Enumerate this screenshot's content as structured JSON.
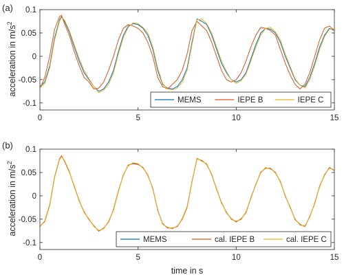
{
  "chart_data": [
    {
      "type": "line",
      "panel_label": "(a)",
      "xlabel": "",
      "ylabel": "acceleration in m/s",
      "ylabel_sup": "2",
      "xlim": [
        0,
        15
      ],
      "ylim": [
        -0.115,
        0.1
      ],
      "xticks": [
        0,
        5,
        10,
        15
      ],
      "xtick_labels": [
        "0",
        "5",
        "10",
        "15"
      ],
      "yticks": [
        -0.1,
        -0.05,
        0,
        0.05,
        0.1
      ],
      "ytick_labels": [
        "-0.1",
        "-0.05",
        "0",
        "0.05",
        "0.1"
      ],
      "grid": false,
      "legend_position": "bottom-right",
      "legend_orientation": "horizontal",
      "x": [
        0,
        0.25,
        0.5,
        0.75,
        1,
        1.1,
        1.25,
        1.5,
        1.75,
        2,
        2.25,
        2.5,
        2.75,
        3,
        3.25,
        3.5,
        3.75,
        4,
        4.25,
        4.5,
        4.75,
        5,
        5.25,
        5.5,
        5.75,
        6,
        6.25,
        6.5,
        6.75,
        7,
        7.25,
        7.5,
        7.75,
        8,
        8.25,
        8.5,
        8.75,
        9,
        9.25,
        9.5,
        9.75,
        10,
        10.25,
        10.5,
        10.75,
        11,
        11.25,
        11.5,
        11.75,
        12,
        12.25,
        12.5,
        12.75,
        13,
        13.25,
        13.5,
        13.75,
        14,
        14.25,
        14.5,
        14.75,
        15
      ],
      "series": [
        {
          "name": "MEMS",
          "color": "#0072BD",
          "values": [
            -0.065,
            -0.055,
            -0.02,
            0.04,
            0.078,
            0.085,
            0.075,
            0.052,
            0.02,
            -0.01,
            -0.035,
            -0.05,
            -0.065,
            -0.075,
            -0.07,
            -0.055,
            -0.03,
            0.01,
            0.045,
            0.065,
            0.07,
            0.068,
            0.06,
            0.045,
            0.015,
            -0.03,
            -0.06,
            -0.068,
            -0.07,
            -0.065,
            -0.05,
            -0.025,
            0.03,
            0.08,
            0.075,
            0.068,
            0.045,
            0.015,
            -0.015,
            -0.035,
            -0.05,
            -0.055,
            -0.05,
            -0.035,
            -0.005,
            0.025,
            0.05,
            0.06,
            0.058,
            0.05,
            0.03,
            0.0,
            -0.025,
            -0.05,
            -0.062,
            -0.065,
            -0.045,
            -0.015,
            0.02,
            0.045,
            0.06,
            0.055
          ]
        },
        {
          "name": "IEPE B",
          "color": "#D95319",
          "values": [
            -0.07,
            -0.045,
            0.0,
            0.058,
            0.085,
            0.088,
            0.07,
            0.045,
            0.01,
            -0.02,
            -0.045,
            -0.055,
            -0.07,
            -0.068,
            -0.055,
            -0.03,
            0.0,
            0.035,
            0.06,
            0.068,
            0.065,
            0.06,
            0.05,
            0.03,
            0.0,
            -0.045,
            -0.065,
            -0.07,
            -0.06,
            -0.05,
            -0.03,
            0.005,
            0.055,
            0.075,
            0.065,
            0.055,
            0.03,
            0.0,
            -0.03,
            -0.05,
            -0.055,
            -0.05,
            -0.035,
            -0.01,
            0.02,
            0.045,
            0.062,
            0.06,
            0.055,
            0.045,
            0.015,
            -0.015,
            -0.04,
            -0.06,
            -0.07,
            -0.06,
            -0.035,
            0.0,
            0.035,
            0.06,
            0.065,
            0.055
          ]
        },
        {
          "name": "IEPE C",
          "color": "#EDB120",
          "values": [
            -0.068,
            -0.058,
            -0.025,
            0.035,
            0.075,
            0.083,
            0.078,
            0.055,
            0.025,
            -0.005,
            -0.03,
            -0.048,
            -0.065,
            -0.078,
            -0.072,
            -0.06,
            -0.035,
            0.005,
            0.04,
            0.062,
            0.072,
            0.07,
            0.062,
            0.05,
            0.02,
            -0.025,
            -0.058,
            -0.07,
            -0.072,
            -0.068,
            -0.055,
            -0.03,
            0.025,
            0.078,
            0.08,
            0.07,
            0.05,
            0.02,
            -0.01,
            -0.032,
            -0.05,
            -0.058,
            -0.052,
            -0.038,
            -0.01,
            0.02,
            0.045,
            0.06,
            0.062,
            0.052,
            0.035,
            0.005,
            -0.022,
            -0.048,
            -0.062,
            -0.068,
            -0.05,
            -0.02,
            0.015,
            0.042,
            0.058,
            0.06
          ]
        }
      ]
    },
    {
      "type": "line",
      "panel_label": "(b)",
      "xlabel": "time in s",
      "ylabel": "acceleration in m/s",
      "ylabel_sup": "2",
      "xlim": [
        0,
        15
      ],
      "ylim": [
        -0.115,
        0.1
      ],
      "xticks": [
        0,
        5,
        10,
        15
      ],
      "xtick_labels": [
        "0",
        "5",
        "10",
        "15"
      ],
      "yticks": [
        -0.1,
        -0.05,
        0,
        0.05,
        0.1
      ],
      "ytick_labels": [
        "-0.1",
        "-0.05",
        "0",
        "0.05",
        "0.1"
      ],
      "grid": false,
      "legend_position": "bottom-right",
      "legend_orientation": "horizontal",
      "x": [
        0,
        0.25,
        0.5,
        0.75,
        1,
        1.1,
        1.25,
        1.5,
        1.75,
        2,
        2.25,
        2.5,
        2.75,
        3,
        3.25,
        3.5,
        3.75,
        4,
        4.25,
        4.5,
        4.75,
        5,
        5.25,
        5.5,
        5.75,
        6,
        6.25,
        6.5,
        6.75,
        7,
        7.25,
        7.5,
        7.75,
        8,
        8.25,
        8.5,
        8.75,
        9,
        9.25,
        9.5,
        9.75,
        10,
        10.25,
        10.5,
        10.75,
        11,
        11.25,
        11.5,
        11.75,
        12,
        12.25,
        12.5,
        12.75,
        13,
        13.25,
        13.5,
        13.75,
        14,
        14.25,
        14.5,
        14.75,
        15
      ],
      "series": [
        {
          "name": "MEMS",
          "color": "#0072BD",
          "values": [
            -0.065,
            -0.055,
            -0.02,
            0.04,
            0.078,
            0.085,
            0.075,
            0.052,
            0.02,
            -0.01,
            -0.035,
            -0.05,
            -0.065,
            -0.075,
            -0.07,
            -0.055,
            -0.03,
            0.01,
            0.045,
            0.065,
            0.07,
            0.068,
            0.06,
            0.045,
            0.015,
            -0.03,
            -0.06,
            -0.068,
            -0.07,
            -0.065,
            -0.05,
            -0.025,
            0.03,
            0.08,
            0.075,
            0.068,
            0.045,
            0.015,
            -0.015,
            -0.035,
            -0.05,
            -0.055,
            -0.05,
            -0.035,
            -0.005,
            0.025,
            0.05,
            0.06,
            0.058,
            0.05,
            0.03,
            0.0,
            -0.025,
            -0.05,
            -0.062,
            -0.065,
            -0.045,
            -0.015,
            0.02,
            0.045,
            0.06,
            0.055
          ]
        },
        {
          "name": "cal. IEPE B",
          "color": "#D95319",
          "values": [
            -0.066,
            -0.054,
            -0.019,
            0.041,
            0.079,
            0.086,
            0.074,
            0.051,
            0.021,
            -0.011,
            -0.034,
            -0.051,
            -0.064,
            -0.076,
            -0.069,
            -0.056,
            -0.029,
            0.011,
            0.044,
            0.066,
            0.069,
            0.067,
            0.061,
            0.044,
            0.016,
            -0.031,
            -0.059,
            -0.069,
            -0.069,
            -0.066,
            -0.049,
            -0.024,
            0.031,
            0.079,
            0.076,
            0.067,
            0.046,
            0.014,
            -0.014,
            -0.036,
            -0.049,
            -0.056,
            -0.049,
            -0.036,
            -0.004,
            0.024,
            0.051,
            0.059,
            0.059,
            0.049,
            0.031,
            -0.001,
            -0.024,
            -0.051,
            -0.061,
            -0.066,
            -0.044,
            -0.016,
            0.021,
            0.044,
            0.061,
            0.054
          ]
        },
        {
          "name": "cal. IEPE C",
          "color": "#EDB120",
          "values": [
            -0.064,
            -0.056,
            -0.021,
            0.039,
            0.077,
            0.084,
            0.076,
            0.053,
            0.019,
            -0.009,
            -0.036,
            -0.049,
            -0.066,
            -0.074,
            -0.071,
            -0.054,
            -0.031,
            0.009,
            0.046,
            0.064,
            0.071,
            0.069,
            0.059,
            0.046,
            0.014,
            -0.029,
            -0.061,
            -0.067,
            -0.071,
            -0.064,
            -0.051,
            -0.026,
            0.029,
            0.081,
            0.074,
            0.069,
            0.044,
            0.016,
            -0.016,
            -0.034,
            -0.051,
            -0.054,
            -0.051,
            -0.034,
            -0.006,
            0.026,
            0.049,
            0.061,
            0.057,
            0.051,
            0.029,
            0.001,
            -0.026,
            -0.049,
            -0.063,
            -0.064,
            -0.046,
            -0.014,
            0.019,
            0.046,
            0.059,
            0.056
          ]
        }
      ]
    }
  ]
}
